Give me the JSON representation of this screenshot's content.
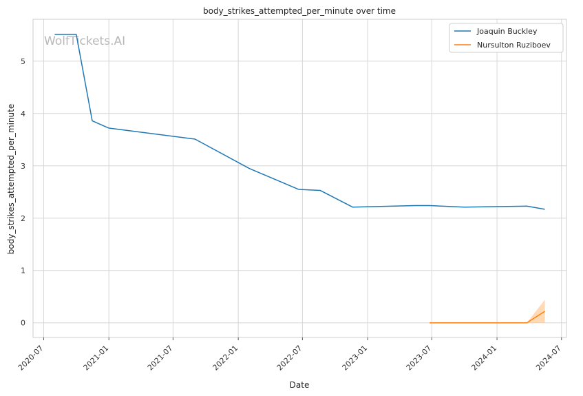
{
  "chart_data": {
    "type": "line",
    "title": "body_strikes_attempted_per_minute over time",
    "xlabel": "Date",
    "ylabel": "body_strikes_attempted_per_minute",
    "watermark": "WolfTickets.AI",
    "x_ticks": [
      "2020-07",
      "2021-01",
      "2021-07",
      "2022-01",
      "2022-07",
      "2023-01",
      "2023-07",
      "2024-01",
      "2024-07"
    ],
    "y_ticks": [
      "0",
      "1",
      "2",
      "3",
      "4",
      "5"
    ],
    "xlim": [
      "2020-06-01",
      "2024-07-15"
    ],
    "ylim": [
      -0.28,
      5.8
    ],
    "grid": true,
    "legend_position": "top-right",
    "series": [
      {
        "name": "Joaquin Buckley",
        "color": "#1f77b4",
        "points": [
          [
            "2020-08-01",
            5.51
          ],
          [
            "2020-10-01",
            5.51
          ],
          [
            "2020-11-15",
            3.86
          ],
          [
            "2021-01-01",
            3.72
          ],
          [
            "2021-09-01",
            3.51
          ],
          [
            "2022-02-01",
            2.95
          ],
          [
            "2022-06-20",
            2.55
          ],
          [
            "2022-08-20",
            2.53
          ],
          [
            "2022-11-20",
            2.21
          ],
          [
            "2023-05-15",
            2.24
          ],
          [
            "2023-06-25",
            2.24
          ],
          [
            "2023-10-01",
            2.21
          ],
          [
            "2024-01-01",
            2.22
          ],
          [
            "2024-03-25",
            2.23
          ],
          [
            "2024-05-15",
            2.17
          ]
        ]
      },
      {
        "name": "Nursulton Ruziboev",
        "color": "#ff7f0e",
        "band_color": "#ffbb78",
        "points": [
          [
            "2023-06-25",
            0.0
          ],
          [
            "2023-10-01",
            0.0
          ],
          [
            "2024-01-01",
            0.0
          ],
          [
            "2024-03-25",
            0.0
          ],
          [
            "2024-05-15",
            0.22
          ]
        ],
        "band_upper": [
          0.0,
          0.0,
          0.0,
          0.0,
          0.44
        ],
        "band_lower": [
          0.0,
          0.0,
          0.0,
          0.0,
          0.0
        ]
      }
    ]
  }
}
